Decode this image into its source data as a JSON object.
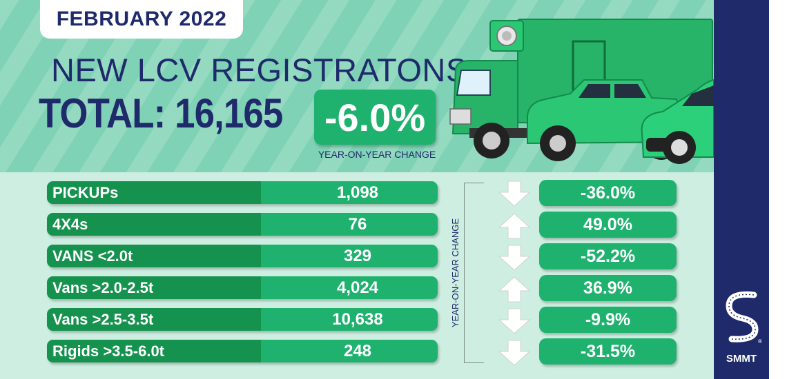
{
  "header": {
    "date": "FEBRUARY 2022",
    "headline": "NEW LCV REGISTRATONS",
    "total": "TOTAL: 16,165",
    "yoy_change": "-6.0%",
    "yoy_caption": "YEAR-ON-YEAR CHANGE"
  },
  "side_label": "YEAR-ON-YEAR CHANGE",
  "rows": [
    {
      "label": "PICKUPs",
      "value": "1,098",
      "change": "-36.0%",
      "direction": "down"
    },
    {
      "label": "4X4s",
      "value": "76",
      "change": "49.0%",
      "direction": "up"
    },
    {
      "label": "VANS <2.0t",
      "value": "329",
      "change": "-52.2%",
      "direction": "down"
    },
    {
      "label": "Vans >2.0-2.5t",
      "value": "4,024",
      "change": "36.9%",
      "direction": "up"
    },
    {
      "label": "Vans >2.5-3.5t",
      "value": "10,638",
      "change": "-9.9%",
      "direction": "down"
    },
    {
      "label": "Rigids >3.5-6.0t",
      "value": "248",
      "change": "-31.5%",
      "direction": "down"
    }
  ],
  "brand": {
    "name": "SMMT",
    "registered_mark": "®"
  },
  "colors": {
    "navy": "#1f2a6b",
    "green": "#1fb26f",
    "dark_green": "#16924f",
    "mint": "#7fd2b5",
    "pale_mint": "#cdeee1"
  }
}
